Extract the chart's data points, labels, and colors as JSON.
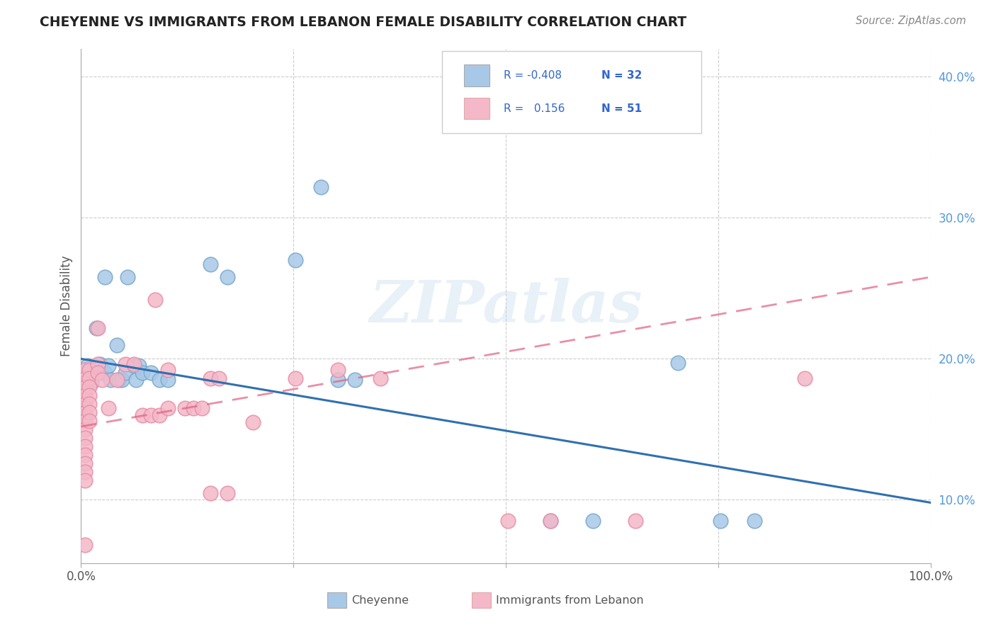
{
  "title": "CHEYENNE VS IMMIGRANTS FROM LEBANON FEMALE DISABILITY CORRELATION CHART",
  "source": "Source: ZipAtlas.com",
  "ylabel": "Female Disability",
  "xlim": [
    0.0,
    1.0
  ],
  "ylim": [
    0.055,
    0.42
  ],
  "xticks": [
    0.0,
    0.25,
    0.5,
    0.75,
    1.0
  ],
  "xtick_labels": [
    "0.0%",
    "",
    "",
    "",
    "100.0%"
  ],
  "yticks": [
    0.1,
    0.2,
    0.3,
    0.4
  ],
  "ytick_labels": [
    "10.0%",
    "20.0%",
    "30.0%",
    "40.0%"
  ],
  "color_blue": "#a8c8e8",
  "color_pink": "#f4b8c8",
  "color_blue_edge": "#7aaac8",
  "color_pink_edge": "#e890a8",
  "color_blue_line": "#3070b0",
  "color_pink_line": "#e06080",
  "color_ytick": "#5599dd",
  "watermark": "ZIPatlas",
  "blue_points": [
    [
      0.008,
      0.195
    ],
    [
      0.012,
      0.183
    ],
    [
      0.018,
      0.222
    ],
    [
      0.022,
      0.196
    ],
    [
      0.022,
      0.19
    ],
    [
      0.028,
      0.258
    ],
    [
      0.028,
      0.19
    ],
    [
      0.032,
      0.195
    ],
    [
      0.035,
      0.185
    ],
    [
      0.042,
      0.21
    ],
    [
      0.045,
      0.185
    ],
    [
      0.048,
      0.185
    ],
    [
      0.052,
      0.19
    ],
    [
      0.055,
      0.258
    ],
    [
      0.062,
      0.195
    ],
    [
      0.065,
      0.185
    ],
    [
      0.068,
      0.195
    ],
    [
      0.072,
      0.19
    ],
    [
      0.082,
      0.19
    ],
    [
      0.092,
      0.185
    ],
    [
      0.102,
      0.185
    ],
    [
      0.152,
      0.267
    ],
    [
      0.172,
      0.258
    ],
    [
      0.252,
      0.27
    ],
    [
      0.282,
      0.322
    ],
    [
      0.302,
      0.185
    ],
    [
      0.322,
      0.185
    ],
    [
      0.552,
      0.085
    ],
    [
      0.602,
      0.085
    ],
    [
      0.702,
      0.197
    ],
    [
      0.752,
      0.085
    ],
    [
      0.792,
      0.085
    ]
  ],
  "pink_points": [
    [
      0.005,
      0.192
    ],
    [
      0.005,
      0.186
    ],
    [
      0.005,
      0.18
    ],
    [
      0.005,
      0.174
    ],
    [
      0.005,
      0.168
    ],
    [
      0.005,
      0.162
    ],
    [
      0.005,
      0.156
    ],
    [
      0.005,
      0.15
    ],
    [
      0.005,
      0.144
    ],
    [
      0.005,
      0.138
    ],
    [
      0.005,
      0.132
    ],
    [
      0.005,
      0.126
    ],
    [
      0.005,
      0.12
    ],
    [
      0.005,
      0.114
    ],
    [
      0.005,
      0.068
    ],
    [
      0.01,
      0.192
    ],
    [
      0.01,
      0.186
    ],
    [
      0.01,
      0.18
    ],
    [
      0.01,
      0.174
    ],
    [
      0.01,
      0.168
    ],
    [
      0.01,
      0.162
    ],
    [
      0.01,
      0.156
    ],
    [
      0.02,
      0.222
    ],
    [
      0.02,
      0.196
    ],
    [
      0.02,
      0.19
    ],
    [
      0.025,
      0.185
    ],
    [
      0.032,
      0.165
    ],
    [
      0.042,
      0.185
    ],
    [
      0.052,
      0.196
    ],
    [
      0.062,
      0.196
    ],
    [
      0.072,
      0.16
    ],
    [
      0.082,
      0.16
    ],
    [
      0.087,
      0.242
    ],
    [
      0.092,
      0.16
    ],
    [
      0.102,
      0.192
    ],
    [
      0.102,
      0.165
    ],
    [
      0.122,
      0.165
    ],
    [
      0.132,
      0.165
    ],
    [
      0.142,
      0.165
    ],
    [
      0.152,
      0.186
    ],
    [
      0.152,
      0.105
    ],
    [
      0.162,
      0.186
    ],
    [
      0.172,
      0.105
    ],
    [
      0.202,
      0.155
    ],
    [
      0.252,
      0.186
    ],
    [
      0.302,
      0.192
    ],
    [
      0.352,
      0.186
    ],
    [
      0.502,
      0.085
    ],
    [
      0.552,
      0.085
    ],
    [
      0.652,
      0.085
    ],
    [
      0.852,
      0.186
    ]
  ],
  "blue_line_x": [
    0.0,
    1.0
  ],
  "blue_line_y": [
    0.2,
    0.098
  ],
  "pink_line_x": [
    0.0,
    1.0
  ],
  "pink_line_y": [
    0.152,
    0.258
  ],
  "background_color": "#ffffff",
  "grid_color": "#cccccc",
  "title_color": "#222222",
  "axis_label_color": "#555555",
  "legend_text_color": "#3366cc",
  "legend_r_color": "#222222"
}
